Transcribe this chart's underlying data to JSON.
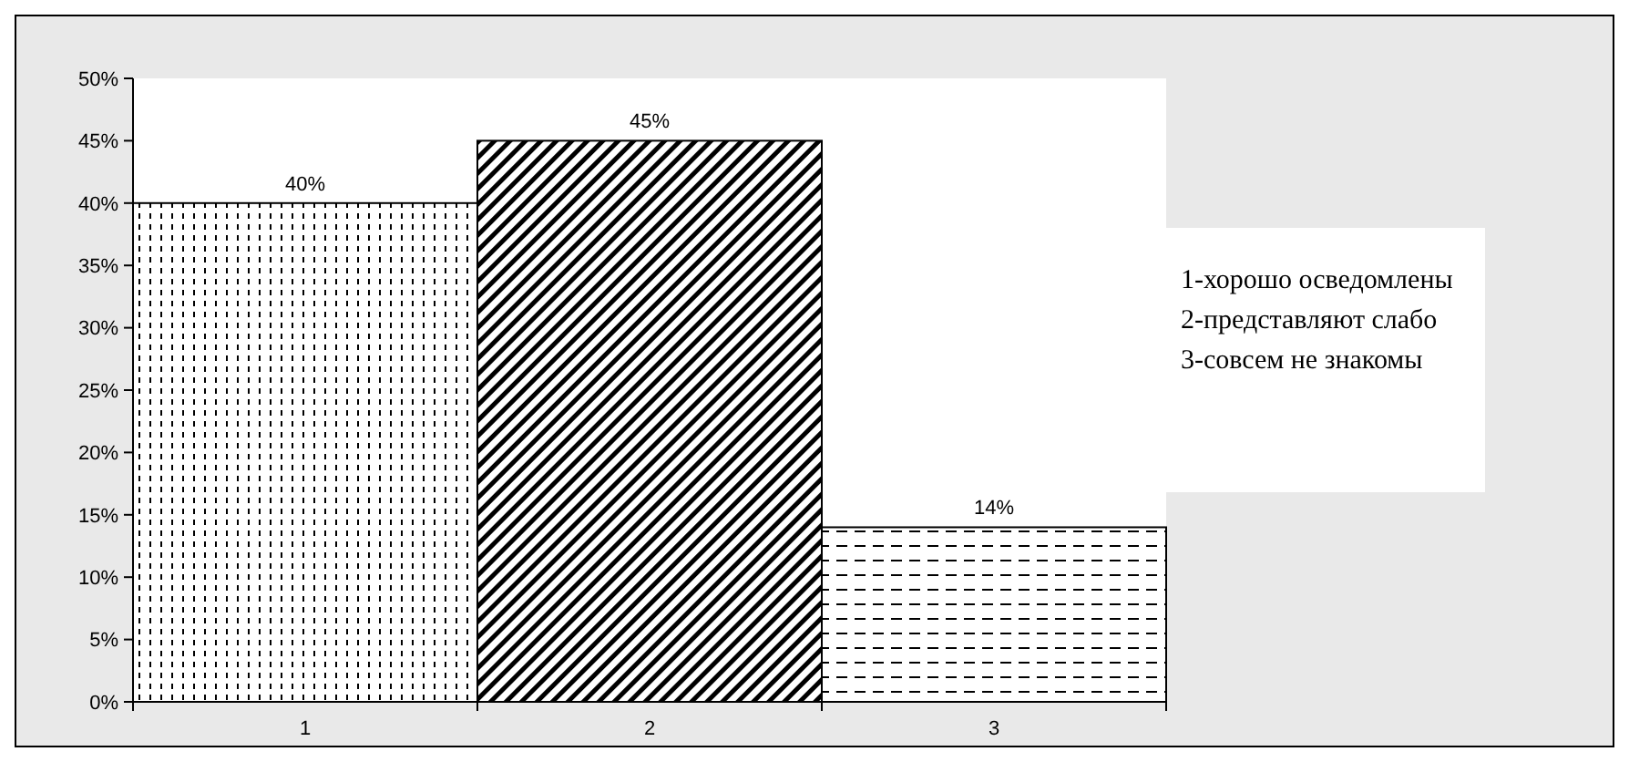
{
  "chart_data": {
    "type": "bar",
    "categories": [
      "1",
      "2",
      "3"
    ],
    "values": [
      40,
      45,
      14
    ],
    "colors": [
      "#000000",
      "#000000",
      "#000000"
    ],
    "value_labels": [
      "40%",
      "45%",
      "14%"
    ],
    "ylim": [
      0,
      50
    ],
    "yticks": [
      {
        "value": 0,
        "label": "0%"
      },
      {
        "value": 5,
        "label": "5%"
      },
      {
        "value": 10,
        "label": "10%"
      },
      {
        "value": 15,
        "label": "15%"
      },
      {
        "value": 20,
        "label": "20%"
      },
      {
        "value": 25,
        "label": "25%"
      },
      {
        "value": 30,
        "label": "30%"
      },
      {
        "value": 35,
        "label": "35%"
      },
      {
        "value": 40,
        "label": "40%"
      },
      {
        "value": 45,
        "label": "45%"
      },
      {
        "value": 50,
        "label": "50%"
      }
    ],
    "annotations": [
      "1-хорошо осведомлены",
      "2-представляют слабо",
      "3-совсем не знакомы"
    ]
  }
}
